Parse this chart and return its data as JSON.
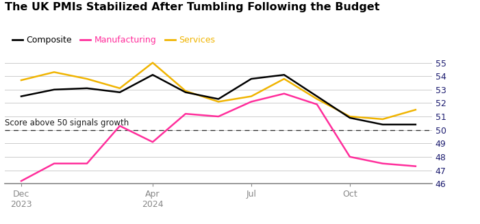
{
  "title": "The UK PMIs Stabilized After Tumbling Following the Budget",
  "annotation": "Score above 50 signals growth",
  "ylim": [
    46,
    55.5
  ],
  "yticks": [
    46,
    47,
    48,
    49,
    50,
    51,
    52,
    53,
    54,
    55
  ],
  "composite": [
    52.5,
    53.0,
    53.1,
    52.8,
    54.1,
    52.8,
    52.3,
    53.8,
    54.1,
    52.5,
    50.9,
    50.4,
    50.4
  ],
  "manufacturing": [
    46.2,
    47.5,
    47.5,
    50.3,
    49.1,
    51.2,
    51.0,
    52.1,
    52.7,
    51.9,
    48.0,
    47.5,
    47.3
  ],
  "services": [
    53.7,
    54.3,
    53.8,
    53.1,
    55.0,
    52.9,
    52.1,
    52.5,
    53.8,
    52.3,
    51.0,
    50.8,
    51.5
  ],
  "composite_color": "#000000",
  "manufacturing_color": "#ff2d9b",
  "services_color": "#f0b400",
  "dashed_line_y": 50,
  "background_color": "#ffffff",
  "legend_labels": [
    "Composite",
    "Manufacturing",
    "Services"
  ],
  "linewidth": 1.8,
  "tick_label_color": "#1a1a6e",
  "annotation_color": "#1a1a1a",
  "grid_color": "#cccccc",
  "spine_color": "#888888"
}
